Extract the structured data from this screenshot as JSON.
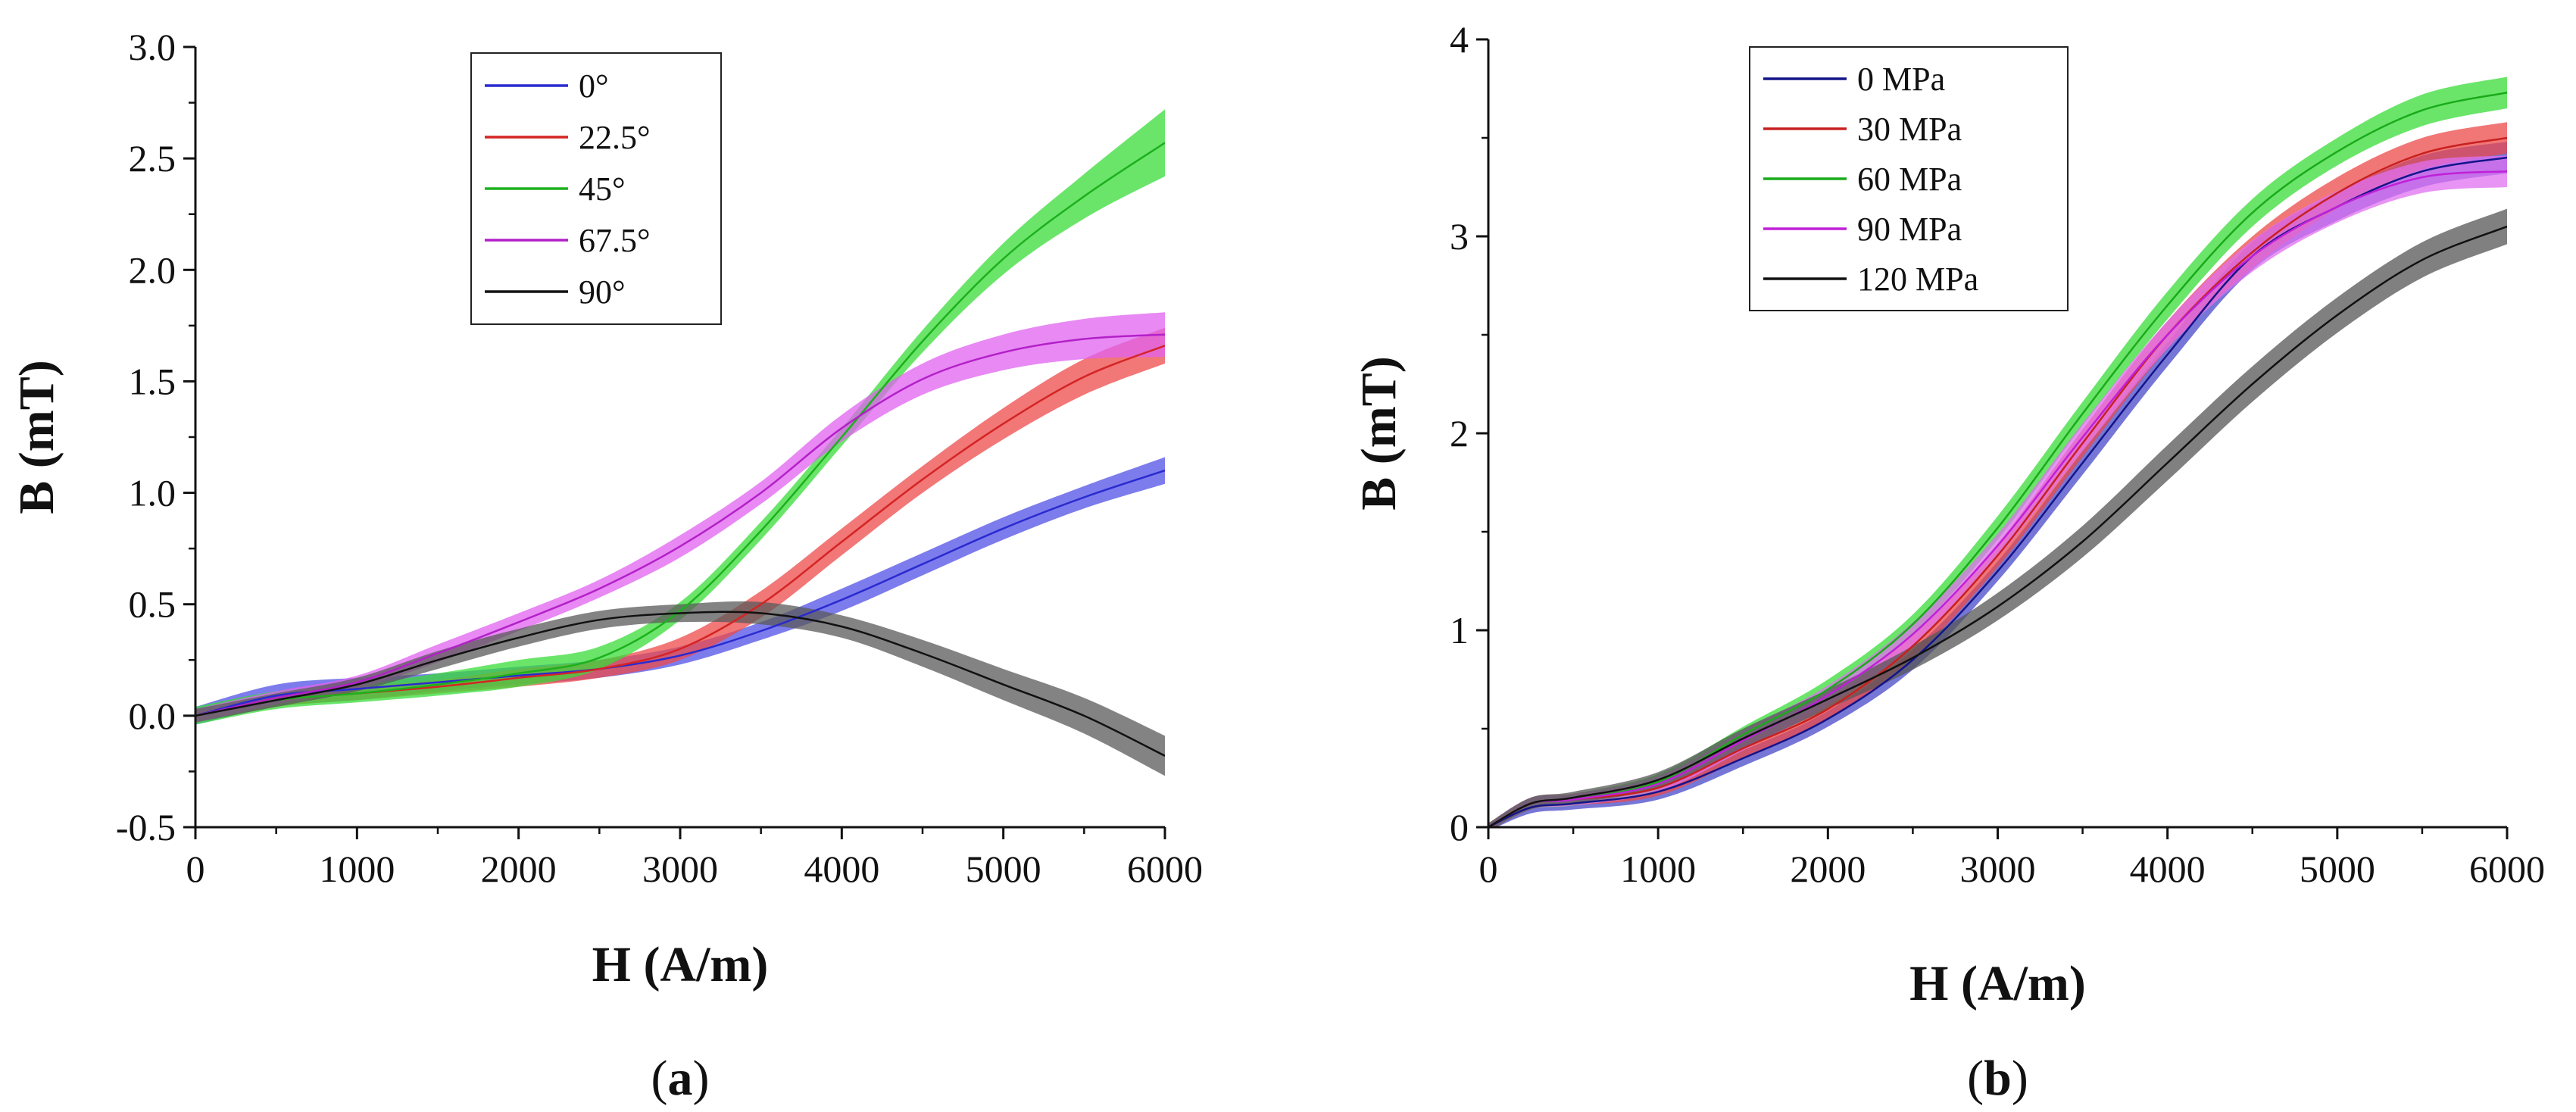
{
  "chart_data": [
    {
      "type": "line",
      "panel_label": "a",
      "xlabel": "H (A/m)",
      "ylabel": "B (mT)",
      "xlim": [
        0,
        6000
      ],
      "ylim": [
        -0.5,
        3.0
      ],
      "xticks": [
        0,
        1000,
        2000,
        3000,
        4000,
        5000,
        6000
      ],
      "xtick_labels": [
        "0",
        "1000",
        "2000",
        "3000",
        "4000",
        "5000",
        "6000"
      ],
      "yticks": [
        -0.5,
        0.0,
        0.5,
        1.0,
        1.5,
        2.0,
        2.5,
        3.0
      ],
      "ytick_labels": [
        "-0.5",
        "0.0",
        "0.5",
        "1.0",
        "1.5",
        "2.0",
        "2.5",
        "3.0"
      ],
      "grid": false,
      "legend_position": "top-center",
      "x": [
        0,
        500,
        1000,
        1500,
        2000,
        2500,
        3000,
        3500,
        4000,
        4500,
        5000,
        5500,
        6000
      ],
      "series": [
        {
          "name": "0°",
          "color": "#2a2ad0",
          "band_color": "#5050e6",
          "values": [
            0.0,
            0.09,
            0.12,
            0.15,
            0.18,
            0.21,
            0.27,
            0.38,
            0.52,
            0.68,
            0.84,
            0.98,
            1.1
          ],
          "band": [
            0.04,
            0.05,
            0.05,
            0.04,
            0.04,
            0.04,
            0.04,
            0.04,
            0.05,
            0.05,
            0.05,
            0.05,
            0.06
          ]
        },
        {
          "name": "22.5°",
          "color": "#d42424",
          "band_color": "#ee4a4a",
          "values": [
            0.0,
            0.07,
            0.1,
            0.13,
            0.17,
            0.21,
            0.3,
            0.5,
            0.78,
            1.06,
            1.31,
            1.52,
            1.66
          ],
          "band": [
            0.03,
            0.03,
            0.03,
            0.03,
            0.04,
            0.04,
            0.05,
            0.06,
            0.06,
            0.06,
            0.07,
            0.08,
            0.08
          ]
        },
        {
          "name": "45°",
          "color": "#1db01d",
          "band_color": "#38dc38",
          "values": [
            0.0,
            0.07,
            0.1,
            0.14,
            0.19,
            0.26,
            0.47,
            0.83,
            1.25,
            1.68,
            2.05,
            2.33,
            2.57
          ],
          "band": [
            0.04,
            0.04,
            0.04,
            0.05,
            0.06,
            0.05,
            0.04,
            0.04,
            0.04,
            0.05,
            0.07,
            0.1,
            0.15
          ]
        },
        {
          "name": "67.5°",
          "color": "#b320c8",
          "band_color": "#e062f0",
          "values": [
            0.0,
            0.08,
            0.15,
            0.28,
            0.42,
            0.57,
            0.76,
            1.0,
            1.29,
            1.51,
            1.63,
            1.69,
            1.71
          ],
          "band": [
            0.03,
            0.03,
            0.03,
            0.04,
            0.04,
            0.04,
            0.05,
            0.05,
            0.06,
            0.07,
            0.08,
            0.09,
            0.1
          ]
        },
        {
          "name": "90°",
          "color": "#111111",
          "band_color": "#5a5a5a",
          "values": [
            0.0,
            0.07,
            0.14,
            0.25,
            0.35,
            0.43,
            0.46,
            0.46,
            0.4,
            0.28,
            0.14,
            0.0,
            -0.18
          ],
          "band": [
            0.03,
            0.03,
            0.03,
            0.04,
            0.04,
            0.04,
            0.04,
            0.05,
            0.05,
            0.06,
            0.07,
            0.08,
            0.09
          ]
        }
      ]
    },
    {
      "type": "line",
      "panel_label": "b",
      "xlabel": "H (A/m)",
      "ylabel": "B (mT)",
      "xlim": [
        0,
        6000
      ],
      "ylim": [
        0,
        4
      ],
      "xticks": [
        0,
        1000,
        2000,
        3000,
        4000,
        5000,
        6000
      ],
      "xtick_labels": [
        "0",
        "1000",
        "2000",
        "3000",
        "4000",
        "5000",
        "6000"
      ],
      "yticks": [
        0,
        1,
        2,
        3,
        4
      ],
      "ytick_labels": [
        "0",
        "1",
        "2",
        "3",
        "4"
      ],
      "grid": false,
      "legend_position": "top-left",
      "x": [
        0,
        250,
        500,
        1000,
        1500,
        2000,
        2500,
        3000,
        3500,
        4000,
        4500,
        5000,
        5500,
        6000
      ],
      "series": [
        {
          "name": "0 MPa",
          "color": "#14148a",
          "band_color": "#4848c8",
          "values": [
            0.0,
            0.1,
            0.12,
            0.18,
            0.35,
            0.55,
            0.85,
            1.3,
            1.85,
            2.4,
            2.9,
            3.15,
            3.33,
            3.4
          ],
          "band": [
            0.02,
            0.03,
            0.03,
            0.04,
            0.04,
            0.04,
            0.05,
            0.05,
            0.06,
            0.06,
            0.07,
            0.07,
            0.08,
            0.08
          ]
        },
        {
          "name": "30 MPa",
          "color": "#c82020",
          "band_color": "#ec4848",
          "values": [
            0.0,
            0.12,
            0.14,
            0.2,
            0.4,
            0.6,
            0.92,
            1.38,
            1.95,
            2.5,
            2.92,
            3.22,
            3.42,
            3.5
          ],
          "band": [
            0.02,
            0.03,
            0.03,
            0.04,
            0.05,
            0.05,
            0.06,
            0.06,
            0.07,
            0.07,
            0.08,
            0.08,
            0.08,
            0.08
          ]
        },
        {
          "name": "60 MPa",
          "color": "#1aaa1a",
          "band_color": "#38dc38",
          "values": [
            0.0,
            0.12,
            0.14,
            0.23,
            0.47,
            0.7,
            1.03,
            1.52,
            2.1,
            2.65,
            3.12,
            3.43,
            3.64,
            3.73
          ],
          "band": [
            0.02,
            0.03,
            0.03,
            0.04,
            0.04,
            0.05,
            0.05,
            0.06,
            0.06,
            0.07,
            0.07,
            0.07,
            0.08,
            0.08
          ]
        },
        {
          "name": "90 MPa",
          "color": "#c020d8",
          "band_color": "#e070f0",
          "values": [
            0.0,
            0.12,
            0.14,
            0.22,
            0.44,
            0.67,
            0.98,
            1.43,
            1.98,
            2.5,
            2.9,
            3.15,
            3.3,
            3.33
          ],
          "band": [
            0.02,
            0.03,
            0.03,
            0.04,
            0.05,
            0.05,
            0.06,
            0.06,
            0.07,
            0.07,
            0.08,
            0.08,
            0.08,
            0.08
          ]
        },
        {
          "name": "120 MPa",
          "color": "#111111",
          "band_color": "#555555",
          "values": [
            0.0,
            0.12,
            0.15,
            0.24,
            0.45,
            0.65,
            0.86,
            1.12,
            1.45,
            1.85,
            2.25,
            2.6,
            2.88,
            3.05
          ],
          "band": [
            0.02,
            0.03,
            0.03,
            0.04,
            0.05,
            0.05,
            0.06,
            0.07,
            0.08,
            0.09,
            0.09,
            0.09,
            0.09,
            0.09
          ]
        }
      ]
    }
  ]
}
